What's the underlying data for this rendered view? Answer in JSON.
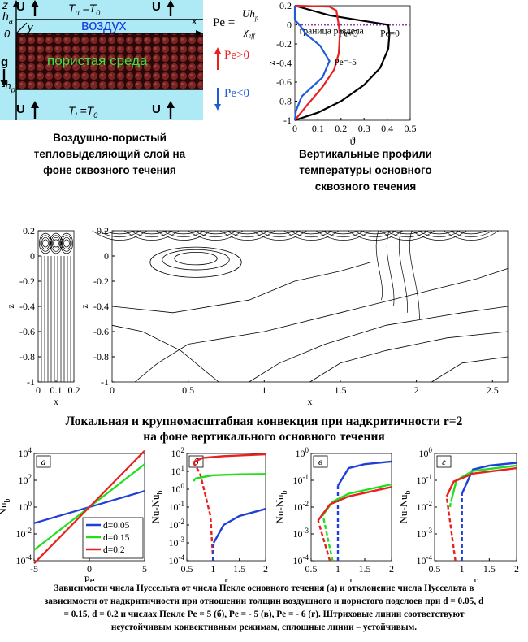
{
  "schematic": {
    "top_boundary_label": "T_u =T_0",
    "bottom_boundary_label": "T_l =T_0",
    "air_label": "воздух",
    "porous_label": "пористая среда",
    "axis_z": "z",
    "axis_y": "y",
    "axis_x": "x",
    "h_a": "h_a",
    "h_p": "-h_p",
    "zero": "0",
    "gravity": "g",
    "flow_label": "U"
  },
  "peclet": {
    "formula_lhs": "Pe =",
    "formula_num": "Uh_p",
    "formula_den": "χ_eff",
    "pos_label": "Pe>0",
    "neg_label": "Pe<0",
    "colors": {
      "positive": "#e8201e",
      "negative": "#1f5bd6"
    }
  },
  "caption_left": [
    "Воздушно-пористый",
    "тепловыделяющий слой на",
    "фоне сквозного течения"
  ],
  "caption_right": [
    "Вертикальные профили",
    "температуры основного",
    "сквозного течения"
  ],
  "caption_middle": [
    "Локальная и крупномасштабная конвекция при надкритичности r=2",
    "на фоне вертикального основного течения"
  ],
  "caption_bottom": [
    "Зависимости числа Нуссельта от числа Пекле основного течения (а) и отклонение числа Нуссельта в",
    "зависимости от надкритичности при отношении толщин воздушного и пористого подслоев при d = 0.05, d",
    "= 0.15, d = 0.2 и числах Пекле Pe = 5 (б), Pe = - 5 (в), Pe = - 6 (г). Штриховые линии соответствуют",
    "неустойчивым конвективным режимам, сплошные линии – устойчивым."
  ],
  "chart_data": [
    {
      "id": "temperature-profiles",
      "type": "line",
      "xlabel": "ϑ",
      "ylabel": "z",
      "xlim": [
        0,
        0.5
      ],
      "ylim": [
        -1,
        0.2
      ],
      "xticks": [
        "0",
        "0.1",
        "0.2",
        "0.3",
        "0.4",
        "0.5"
      ],
      "yticks": [
        "0.2",
        "0",
        "-0.2",
        "-0.4",
        "-0.6",
        "-0.8",
        "-1"
      ],
      "annotation": "граница раздела",
      "series": [
        {
          "name": "Pe=0",
          "color": "#000000",
          "points": [
            [
              0,
              -1
            ],
            [
              0.1,
              -0.92
            ],
            [
              0.2,
              -0.8
            ],
            [
              0.3,
              -0.63
            ],
            [
              0.37,
              -0.45
            ],
            [
              0.405,
              -0.25
            ],
            [
              0.41,
              -0.1
            ],
            [
              0.405,
              0
            ],
            [
              0.3,
              0.04
            ],
            [
              0.15,
              0.1
            ],
            [
              0,
              0.2
            ]
          ]
        },
        {
          "name": "Pe=5",
          "color": "#e8201e",
          "points": [
            [
              0,
              -1
            ],
            [
              0.05,
              -0.85
            ],
            [
              0.12,
              -0.65
            ],
            [
              0.17,
              -0.47
            ],
            [
              0.19,
              -0.3
            ],
            [
              0.195,
              -0.1
            ],
            [
              0.19,
              0
            ],
            [
              0.18,
              0.15
            ],
            [
              0.15,
              0.19
            ],
            [
              0,
              0.2
            ]
          ]
        },
        {
          "name": "Pe=-5",
          "color": "#1f5bd6",
          "points": [
            [
              0,
              -1
            ],
            [
              0.005,
              -0.9
            ],
            [
              0.03,
              -0.75
            ],
            [
              0.12,
              -0.55
            ],
            [
              0.15,
              -0.38
            ],
            [
              0.11,
              -0.22
            ],
            [
              0.05,
              -0.1
            ],
            [
              0.02,
              0
            ],
            [
              0,
              0.05
            ],
            [
              0,
              0.2
            ]
          ]
        }
      ]
    },
    {
      "id": "nusselt-vs-peclet",
      "type": "line",
      "panel": "а",
      "xlabel": "Pe",
      "ylabel": "Nu_b",
      "xlim": [
        -5,
        5
      ],
      "ylim_log10": [
        -4,
        4
      ],
      "xticks": [
        "-5",
        "0",
        "5"
      ],
      "yticks": [
        "10^4",
        "10^2",
        "10^0",
        "10^-2",
        "10^-4"
      ],
      "legend": "lower-right",
      "series": [
        {
          "name": "d=0.05",
          "color": "#1f3fd6",
          "log10_points": [
            [
              -5,
              -1.2
            ],
            [
              5,
              1.2
            ]
          ]
        },
        {
          "name": "d=0.15",
          "color": "#1fe01f",
          "log10_points": [
            [
              -5,
              -3.2
            ],
            [
              5,
              3.2
            ]
          ]
        },
        {
          "name": "d=0.2",
          "color": "#e8201e",
          "log10_points": [
            [
              -5,
              -4.2
            ],
            [
              5,
              4.2
            ]
          ]
        }
      ]
    },
    {
      "id": "nu-dev-pe5",
      "type": "line",
      "panel": "б",
      "xlabel": "r",
      "ylabel": "Nu-Nu_b",
      "xlim": [
        0.5,
        2
      ],
      "ylim_log10": [
        -4,
        2
      ],
      "xticks": [
        "0.5",
        "1",
        "1.5",
        "2"
      ],
      "yticks": [
        "10^2",
        "10^1",
        "10^0",
        "10^-1",
        "10^-2",
        "10^-3",
        "10^-4"
      ],
      "series": [
        {
          "name": "d=0.2",
          "color": "#e8201e",
          "dashed": [
            [
              1,
              -4
            ],
            [
              0.95,
              -1.5
            ],
            [
              0.75,
              0.9
            ],
            [
              0.62,
              1.5
            ]
          ],
          "solid": [
            [
              0.62,
              1.5
            ],
            [
              0.8,
              1.75
            ],
            [
              1.2,
              1.85
            ],
            [
              2,
              1.95
            ]
          ]
        },
        {
          "name": "d=0.15",
          "color": "#1fe01f",
          "dashed": [
            [
              0.63,
              0.45
            ],
            [
              0.66,
              0.6
            ]
          ],
          "solid": [
            [
              0.66,
              0.6
            ],
            [
              1,
              0.78
            ],
            [
              1.5,
              0.83
            ],
            [
              2,
              0.85
            ]
          ]
        },
        {
          "name": "d=0.05",
          "color": "#1f3fd6",
          "dashed": [
            [
              1,
              -4
            ],
            [
              1.01,
              -3
            ]
          ],
          "solid": [
            [
              1.01,
              -3
            ],
            [
              1.2,
              -2
            ],
            [
              1.5,
              -1.5
            ],
            [
              2,
              -1.1
            ]
          ]
        }
      ]
    },
    {
      "id": "nu-dev-pe-5",
      "type": "line",
      "panel": "в",
      "xlabel": "r",
      "ylabel": "Nu-Nu_b",
      "xlim": [
        0.5,
        2
      ],
      "ylim_log10": [
        -4,
        0
      ],
      "xticks": [
        "0.5",
        "1",
        "1.5",
        "2"
      ],
      "yticks": [
        "10^0",
        "10^-1",
        "10^-2",
        "10^-3",
        "10^-4"
      ],
      "series": [
        {
          "name": "d=0.05",
          "color": "#1f3fd6",
          "dashed": [
            [
              1,
              -4
            ],
            [
              1,
              -1.2
            ]
          ],
          "solid": [
            [
              1,
              -1.2
            ],
            [
              1.2,
              -0.55
            ],
            [
              1.5,
              -0.4
            ],
            [
              2,
              -0.3
            ]
          ]
        },
        {
          "name": "d=0.15",
          "color": "#1fe01f",
          "dashed": [
            [
              0.9,
              -4
            ],
            [
              0.72,
              -2.3
            ]
          ],
          "solid": [
            [
              0.72,
              -2.3
            ],
            [
              0.9,
              -1.8
            ],
            [
              1.2,
              -1.5
            ],
            [
              2,
              -1.15
            ]
          ]
        },
        {
          "name": "d=0.2",
          "color": "#e8201e",
          "dashed": [
            [
              0.85,
              -4
            ],
            [
              0.63,
              -2.5
            ]
          ],
          "solid": [
            [
              0.63,
              -2.5
            ],
            [
              0.85,
              -1.9
            ],
            [
              1.2,
              -1.6
            ],
            [
              2,
              -1.25
            ]
          ]
        }
      ]
    },
    {
      "id": "nu-dev-pe-6",
      "type": "line",
      "panel": "г",
      "xlabel": "r",
      "ylabel": "Nu-Nu_b",
      "xlim": [
        0.5,
        2
      ],
      "ylim_log10": [
        -4,
        0
      ],
      "xticks": [
        "0.5",
        "1",
        "1.5",
        "2"
      ],
      "yticks": [
        "10^0",
        "10^-1",
        "10^-2",
        "10^-3",
        "10^-4"
      ],
      "series": [
        {
          "name": "d=0.05",
          "color": "#1f3fd6",
          "dashed": [
            [
              1,
              -4
            ],
            [
              1,
              -1.5
            ]
          ],
          "solid": [
            [
              1,
              -1.5
            ],
            [
              1.2,
              -0.6
            ],
            [
              1.5,
              -0.45
            ],
            [
              2,
              -0.35
            ]
          ]
        },
        {
          "name": "d=0.15",
          "color": "#1fe01f",
          "dashed": [
            [
              0.78,
              -2
            ],
            [
              0.8,
              -1.8
            ]
          ],
          "solid": [
            [
              0.8,
              -1.8
            ],
            [
              0.9,
              -1
            ],
            [
              1.2,
              -0.65
            ],
            [
              2,
              -0.45
            ]
          ]
        },
        {
          "name": "d=0.2",
          "color": "#e8201e",
          "dashed": [
            [
              0.88,
              -4
            ],
            [
              0.72,
              -1.6
            ]
          ],
          "solid": [
            [
              0.72,
              -1.6
            ],
            [
              0.85,
              -1.05
            ],
            [
              1.2,
              -0.75
            ],
            [
              2,
              -0.55
            ]
          ]
        }
      ]
    },
    {
      "id": "convection-local",
      "type": "line",
      "xlabel": "x",
      "ylabel": "z",
      "xlim": [
        0,
        0.2
      ],
      "ylim": [
        -1,
        0.2
      ],
      "xticks": [
        "0",
        "0.1",
        "0.2"
      ],
      "yticks": [
        "0.2",
        "0",
        "-0.2",
        "-0.4",
        "-0.6",
        "-0.8",
        "-1"
      ]
    },
    {
      "id": "convection-large",
      "type": "line",
      "xlabel": "x",
      "ylabel": "z",
      "xlim": [
        0,
        2.6
      ],
      "ylim": [
        -1,
        0.2
      ],
      "xticks": [
        "0",
        "0.5",
        "1",
        "1.5",
        "2",
        "2.5"
      ],
      "yticks": [
        "0.2",
        "0",
        "-0.2",
        "-0.4",
        "-0.6",
        "-0.8",
        "-1"
      ]
    }
  ]
}
